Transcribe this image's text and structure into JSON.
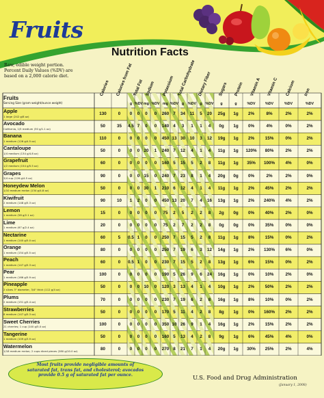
{
  "header": {
    "title": "Fruits",
    "subtitle": "Nutrition Facts",
    "note_lines": [
      "Raw, edible weight portion.",
      "Percent Daily Values (%DV) are",
      "based on a 2,000 calorie diet."
    ]
  },
  "table": {
    "label_header": "Fruits",
    "serving_header": "Serving Size (gram weight/ounce weight)",
    "columns": [
      "Calories",
      "Calories from Fat",
      "Total Fat",
      "Sodium",
      "Potassium",
      "Total Carbohydrate",
      "Dietary Fiber",
      "Sugars",
      "Protein",
      "Vitamin A",
      "Vitamin C",
      "Calcium",
      "Iron"
    ],
    "units": [
      "g",
      "%DV",
      "mg",
      "%DV",
      "mg",
      "%DV",
      "g",
      "%DV",
      "g",
      "%DV",
      "g",
      "g",
      "%DV",
      "%DV",
      "%DV",
      "%DV"
    ],
    "rows": [
      {
        "name": "Apple",
        "serving": "1 large (242 g/8 oz)",
        "cal": "130",
        "fatcal": "0",
        "fat_g": "0",
        "fat_dv": "0",
        "na_mg": "0",
        "na_dv": "0",
        "k_mg": "260",
        "k_dv": "7",
        "carb_g": "34",
        "carb_dv": "11",
        "fiber_g": "5",
        "fiber_dv": "20",
        "sugars": "25g",
        "protein": "1g",
        "vita": "2%",
        "vitc": "8%",
        "calcium": "2%",
        "iron": "2%"
      },
      {
        "name": "Avocado",
        "serving": "California, 1/5 medium (30 g/1.1 oz)",
        "cal": "50",
        "fatcal": "35",
        "fat_g": "4.5",
        "fat_dv": "7",
        "na_mg": "0",
        "na_dv": "0",
        "k_mg": "140",
        "k_dv": "4",
        "carb_g": "3",
        "carb_dv": "1",
        "fiber_g": "1",
        "fiber_dv": "4",
        "sugars": "0g",
        "protein": "1g",
        "vita": "0%",
        "vitc": "4%",
        "calcium": "0%",
        "iron": "2%"
      },
      {
        "name": "Banana",
        "serving": "1 medium (126 g/4.5 oz)",
        "cal": "110",
        "fatcal": "0",
        "fat_g": "0",
        "fat_dv": "0",
        "na_mg": "0",
        "na_dv": "0",
        "k_mg": "450",
        "k_dv": "13",
        "carb_g": "30",
        "carb_dv": "10",
        "fiber_g": "3",
        "fiber_dv": "12",
        "sugars": "19g",
        "protein": "1g",
        "vita": "2%",
        "vitc": "15%",
        "calcium": "0%",
        "iron": "2%"
      },
      {
        "name": "Cantaloupe",
        "serving": "1/4 medium (134 g/4.8 oz)",
        "cal": "50",
        "fatcal": "0",
        "fat_g": "0",
        "fat_dv": "0",
        "na_mg": "20",
        "na_dv": "1",
        "k_mg": "240",
        "k_dv": "7",
        "carb_g": "12",
        "carb_dv": "4",
        "fiber_g": "1",
        "fiber_dv": "4",
        "sugars": "11g",
        "protein": "1g",
        "vita": "120%",
        "vitc": "80%",
        "calcium": "2%",
        "iron": "2%"
      },
      {
        "name": "Grapefruit",
        "serving": "1/2 medium (154 g/5.5 oz)",
        "cal": "60",
        "fatcal": "0",
        "fat_g": "0",
        "fat_dv": "0",
        "na_mg": "0",
        "na_dv": "0",
        "k_mg": "160",
        "k_dv": "5",
        "carb_g": "15",
        "carb_dv": "5",
        "fiber_g": "2",
        "fiber_dv": "8",
        "sugars": "11g",
        "protein": "1g",
        "vita": "35%",
        "vitc": "100%",
        "calcium": "4%",
        "iron": "0%"
      },
      {
        "name": "Grapes",
        "serving": "3/4 cup (126 g/4.5 oz)",
        "cal": "90",
        "fatcal": "0",
        "fat_g": "0",
        "fat_dv": "0",
        "na_mg": "15",
        "na_dv": "0",
        "k_mg": "240",
        "k_dv": "7",
        "carb_g": "23",
        "carb_dv": "8",
        "fiber_g": "1",
        "fiber_dv": "4",
        "sugars": "20g",
        "protein": "0g",
        "vita": "0%",
        "vitc": "2%",
        "calcium": "2%",
        "iron": "0%"
      },
      {
        "name": "Honeydew Melon",
        "serving": "1/10 medium melon (134 g/4.8 oz)",
        "cal": "50",
        "fatcal": "0",
        "fat_g": "0",
        "fat_dv": "0",
        "na_mg": "30",
        "na_dv": "1",
        "k_mg": "210",
        "k_dv": "6",
        "carb_g": "12",
        "carb_dv": "4",
        "fiber_g": "1",
        "fiber_dv": "4",
        "sugars": "11g",
        "protein": "1g",
        "vita": "2%",
        "vitc": "45%",
        "calcium": "2%",
        "iron": "2%"
      },
      {
        "name": "Kiwifruit",
        "serving": "2 medium (148 g/5.3 oz)",
        "cal": "90",
        "fatcal": "10",
        "fat_g": "1",
        "fat_dv": "2",
        "na_mg": "0",
        "na_dv": "0",
        "k_mg": "450",
        "k_dv": "13",
        "carb_g": "20",
        "carb_dv": "7",
        "fiber_g": "4",
        "fiber_dv": "16",
        "sugars": "13g",
        "protein": "1g",
        "vita": "2%",
        "vitc": "240%",
        "calcium": "4%",
        "iron": "2%"
      },
      {
        "name": "Lemon",
        "serving": "1 medium (58 g/2.1 oz)",
        "cal": "15",
        "fatcal": "0",
        "fat_g": "0",
        "fat_dv": "0",
        "na_mg": "0",
        "na_dv": "0",
        "k_mg": "75",
        "k_dv": "2",
        "carb_g": "5",
        "carb_dv": "2",
        "fiber_g": "2",
        "fiber_dv": "8",
        "sugars": "2g",
        "protein": "0g",
        "vita": "0%",
        "vitc": "40%",
        "calcium": "2%",
        "iron": "0%"
      },
      {
        "name": "Lime",
        "serving": "1 medium (67 g/2.4 oz)",
        "cal": "20",
        "fatcal": "0",
        "fat_g": "0",
        "fat_dv": "0",
        "na_mg": "0",
        "na_dv": "0",
        "k_mg": "75",
        "k_dv": "2",
        "carb_g": "7",
        "carb_dv": "2",
        "fiber_g": "2",
        "fiber_dv": "8",
        "sugars": "0g",
        "protein": "0g",
        "vita": "0%",
        "vitc": "35%",
        "calcium": "0%",
        "iron": "0%"
      },
      {
        "name": "Nectarine",
        "serving": "1 medium (140 g/5.0 oz)",
        "cal": "60",
        "fatcal": "5",
        "fat_g": "0.5",
        "fat_dv": "1",
        "na_mg": "0",
        "na_dv": "0",
        "k_mg": "250",
        "k_dv": "7",
        "carb_g": "15",
        "carb_dv": "5",
        "fiber_g": "2",
        "fiber_dv": "8",
        "sugars": "11g",
        "protein": "1g",
        "vita": "8%",
        "vitc": "15%",
        "calcium": "0%",
        "iron": "2%"
      },
      {
        "name": "Orange",
        "serving": "1 medium (154 g/5.5 oz)",
        "cal": "80",
        "fatcal": "0",
        "fat_g": "0",
        "fat_dv": "0",
        "na_mg": "0",
        "na_dv": "0",
        "k_mg": "250",
        "k_dv": "7",
        "carb_g": "19",
        "carb_dv": "6",
        "fiber_g": "3",
        "fiber_dv": "12",
        "sugars": "14g",
        "protein": "1g",
        "vita": "2%",
        "vitc": "130%",
        "calcium": "6%",
        "iron": "0%"
      },
      {
        "name": "Peach",
        "serving": "1 medium (147 g/5.3 oz)",
        "cal": "60",
        "fatcal": "0",
        "fat_g": "0.5",
        "fat_dv": "1",
        "na_mg": "0",
        "na_dv": "0",
        "k_mg": "230",
        "k_dv": "7",
        "carb_g": "15",
        "carb_dv": "5",
        "fiber_g": "2",
        "fiber_dv": "8",
        "sugars": "13g",
        "protein": "1g",
        "vita": "6%",
        "vitc": "15%",
        "calcium": "0%",
        "iron": "2%"
      },
      {
        "name": "Pear",
        "serving": "1 medium (166 g/5.9 oz)",
        "cal": "100",
        "fatcal": "0",
        "fat_g": "0",
        "fat_dv": "0",
        "na_mg": "0",
        "na_dv": "0",
        "k_mg": "190",
        "k_dv": "5",
        "carb_g": "26",
        "carb_dv": "9",
        "fiber_g": "6",
        "fiber_dv": "24",
        "sugars": "16g",
        "protein": "1g",
        "vita": "0%",
        "vitc": "10%",
        "calcium": "2%",
        "iron": "0%"
      },
      {
        "name": "Pineapple",
        "serving": "2 slices 3\" diameter, 3/4\" thick (112 g/4 oz)",
        "cal": "50",
        "fatcal": "0",
        "fat_g": "0",
        "fat_dv": "0",
        "na_mg": "10",
        "na_dv": "0",
        "k_mg": "120",
        "k_dv": "3",
        "carb_g": "13",
        "carb_dv": "4",
        "fiber_g": "1",
        "fiber_dv": "4",
        "sugars": "10g",
        "protein": "1g",
        "vita": "2%",
        "vitc": "50%",
        "calcium": "2%",
        "iron": "2%"
      },
      {
        "name": "Plums",
        "serving": "2 medium (151 g/5.4 oz)",
        "cal": "70",
        "fatcal": "0",
        "fat_g": "0",
        "fat_dv": "0",
        "na_mg": "0",
        "na_dv": "0",
        "k_mg": "230",
        "k_dv": "7",
        "carb_g": "19",
        "carb_dv": "6",
        "fiber_g": "2",
        "fiber_dv": "8",
        "sugars": "16g",
        "protein": "1g",
        "vita": "8%",
        "vitc": "10%",
        "calcium": "0%",
        "iron": "2%"
      },
      {
        "name": "Strawberries",
        "serving": "8 medium (147 g/5.3 oz)",
        "cal": "50",
        "fatcal": "0",
        "fat_g": "0",
        "fat_dv": "0",
        "na_mg": "0",
        "na_dv": "0",
        "k_mg": "170",
        "k_dv": "5",
        "carb_g": "11",
        "carb_dv": "4",
        "fiber_g": "2",
        "fiber_dv": "8",
        "sugars": "8g",
        "protein": "1g",
        "vita": "0%",
        "vitc": "160%",
        "calcium": "2%",
        "iron": "2%"
      },
      {
        "name": "Sweet Cherries",
        "serving": "21 cherries; 1 cup (140 g/5.0 oz)",
        "cal": "100",
        "fatcal": "0",
        "fat_g": "0",
        "fat_dv": "0",
        "na_mg": "0",
        "na_dv": "0",
        "k_mg": "350",
        "k_dv": "10",
        "carb_g": "26",
        "carb_dv": "9",
        "fiber_g": "1",
        "fiber_dv": "4",
        "sugars": "16g",
        "protein": "1g",
        "vita": "2%",
        "vitc": "15%",
        "calcium": "2%",
        "iron": "2%"
      },
      {
        "name": "Tangerine",
        "serving": "1 medium (109 g/3.9 oz)",
        "cal": "50",
        "fatcal": "0",
        "fat_g": "0",
        "fat_dv": "0",
        "na_mg": "0",
        "na_dv": "0",
        "k_mg": "160",
        "k_dv": "5",
        "carb_g": "13",
        "carb_dv": "4",
        "fiber_g": "2",
        "fiber_dv": "8",
        "sugars": "9g",
        "protein": "1g",
        "vita": "6%",
        "vitc": "45%",
        "calcium": "4%",
        "iron": "0%"
      },
      {
        "name": "Watermelon",
        "serving": "1/18 medium melon; 2 cups diced pieces (280 g/10.0 oz)",
        "cal": "80",
        "fatcal": "0",
        "fat_g": "0",
        "fat_dv": "0",
        "na_mg": "0",
        "na_dv": "0",
        "k_mg": "270",
        "k_dv": "8",
        "carb_g": "21",
        "carb_dv": "7",
        "fiber_g": "1",
        "fiber_dv": "4",
        "sugars": "20g",
        "protein": "1g",
        "vita": "30%",
        "vitc": "25%",
        "calcium": "2%",
        "iron": "4%"
      }
    ]
  },
  "footer": {
    "note_lines": [
      "Most fruits provide negligible amounts of",
      "saturated fat, trans fat, and cholesterol; avocados",
      "provide 0.5 g of saturated fat per ounce."
    ],
    "agency": "U.S. Food and Drug Administration",
    "agency_date": "(January 1, 2008)"
  },
  "colors": {
    "background": "#f6f3c4",
    "row_yellow": "#f2ee6a",
    "row_light": "#fbf9dc",
    "diag_green": "#a9c84a",
    "diag_pale": "#e7eda6",
    "title_blue": "#1d3a98"
  }
}
